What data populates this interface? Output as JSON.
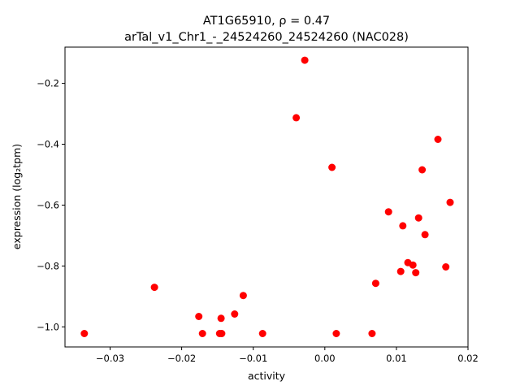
{
  "chart_data": {
    "type": "scatter",
    "title_line1": "AT1G65910, ρ = 0.47",
    "title_line2": "arTal_v1_Chr1_-_24524260_24524260 (NAC028)",
    "xlabel": "activity",
    "ylabel": "expression (log₂tpm)",
    "xlim": [
      -0.0363,
      0.02
    ],
    "ylim": [
      -1.066,
      -0.081
    ],
    "x_ticks": [
      {
        "value": -0.03,
        "label": "−0.03"
      },
      {
        "value": -0.02,
        "label": "−0.02"
      },
      {
        "value": -0.01,
        "label": "−0.01"
      },
      {
        "value": 0.0,
        "label": "0.00"
      },
      {
        "value": 0.01,
        "label": "0.01"
      },
      {
        "value": 0.02,
        "label": "0.02"
      }
    ],
    "y_ticks": [
      {
        "value": -1.0,
        "label": "−1.0"
      },
      {
        "value": -0.8,
        "label": "−0.8"
      },
      {
        "value": -0.6,
        "label": "−0.6"
      },
      {
        "value": -0.4,
        "label": "−0.4"
      },
      {
        "value": -0.2,
        "label": "−0.2"
      }
    ],
    "marker_color": "#ff0000",
    "grid": false,
    "points": [
      {
        "x": -0.0336,
        "y": -1.022
      },
      {
        "x": -0.0238,
        "y": -0.87
      },
      {
        "x": -0.0176,
        "y": -0.966
      },
      {
        "x": -0.0171,
        "y": -1.022
      },
      {
        "x": -0.0147,
        "y": -1.022
      },
      {
        "x": -0.0145,
        "y": -0.972
      },
      {
        "x": -0.0144,
        "y": -1.022
      },
      {
        "x": -0.0126,
        "y": -0.958
      },
      {
        "x": -0.0114,
        "y": -0.897
      },
      {
        "x": -0.0087,
        "y": -1.022
      },
      {
        "x": -0.004,
        "y": -0.313
      },
      {
        "x": -0.0028,
        "y": -0.124
      },
      {
        "x": 0.001,
        "y": -0.476
      },
      {
        "x": 0.0016,
        "y": -1.022
      },
      {
        "x": 0.0066,
        "y": -1.022
      },
      {
        "x": 0.0071,
        "y": -0.857
      },
      {
        "x": 0.0089,
        "y": -0.622
      },
      {
        "x": 0.0106,
        "y": -0.818
      },
      {
        "x": 0.0109,
        "y": -0.668
      },
      {
        "x": 0.0116,
        "y": -0.789
      },
      {
        "x": 0.0123,
        "y": -0.797
      },
      {
        "x": 0.0127,
        "y": -0.822
      },
      {
        "x": 0.0131,
        "y": -0.642
      },
      {
        "x": 0.0136,
        "y": -0.484
      },
      {
        "x": 0.014,
        "y": -0.697
      },
      {
        "x": 0.0158,
        "y": -0.384
      },
      {
        "x": 0.0169,
        "y": -0.803
      },
      {
        "x": 0.0175,
        "y": -0.591
      }
    ]
  }
}
